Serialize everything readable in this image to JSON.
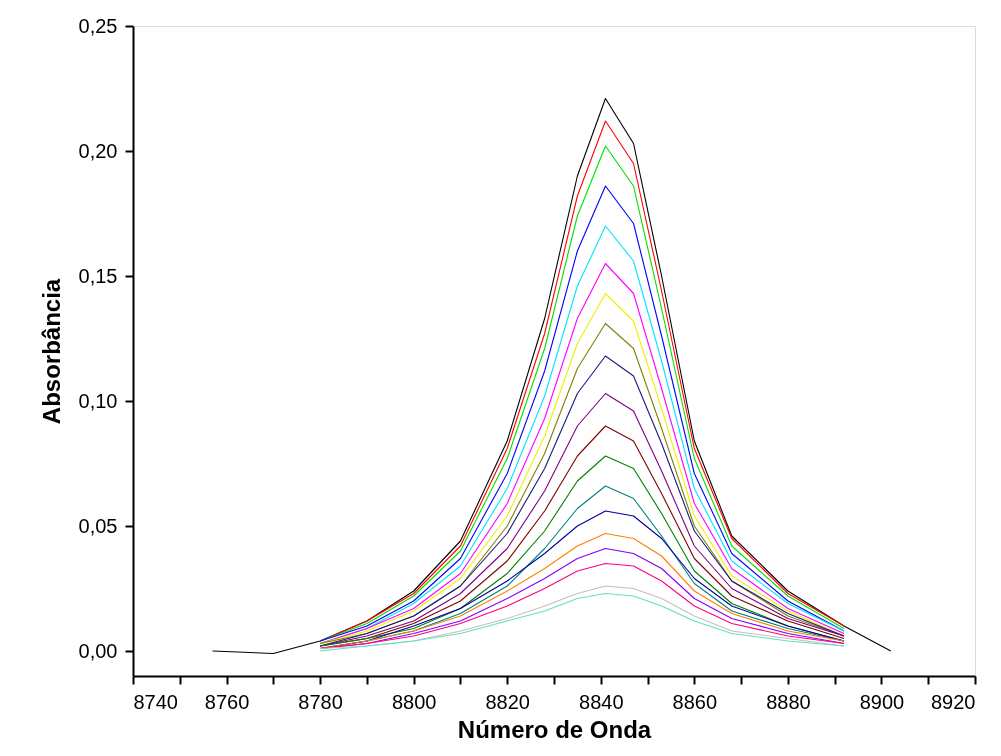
{
  "chart_data": {
    "type": "line",
    "xlabel": "Número de Onda",
    "ylabel": "Absorbância",
    "x": [
      8757,
      8770,
      8780,
      8790,
      8800,
      8810,
      8820,
      8828,
      8835,
      8841,
      8847,
      8853,
      8860,
      8868,
      8880,
      8892,
      8902
    ],
    "xlim": [
      8740,
      8920
    ],
    "xticks": [
      8740,
      {
        "value": 8750,
        "label": null
      },
      8760,
      {
        "value": 8770,
        "label": null
      },
      8780,
      {
        "value": 8790,
        "label": null
      },
      8800,
      {
        "value": 8810,
        "label": null
      },
      8820,
      {
        "value": 8830,
        "label": null
      },
      8840,
      {
        "value": 8850,
        "label": null
      },
      8860,
      {
        "value": 8870,
        "label": null
      },
      8880,
      {
        "value": 8890,
        "label": null
      },
      8900,
      {
        "value": 8910,
        "label": null
      },
      8920
    ],
    "ylim": [
      -0.01,
      0.25
    ],
    "yticks": [
      {
        "value": 0,
        "label": "0,00"
      },
      {
        "value": 0.05,
        "label": "0,05"
      },
      {
        "value": 0.1,
        "label": "0,10"
      },
      {
        "value": 0.15,
        "label": "0,15"
      },
      {
        "value": 0.2,
        "label": "0,20"
      },
      {
        "value": 0.25,
        "label": "0,25"
      }
    ],
    "grid": false,
    "legend": false,
    "marker": "none",
    "line_style": "solid",
    "series": [
      {
        "color": "#000000",
        "values": [
          0,
          -0.001,
          0.004,
          0.012,
          0.024,
          0.044,
          0.084,
          0.133,
          0.19,
          0.221,
          0.203,
          0.15,
          0.084,
          0.046,
          0.024,
          0.01,
          0
        ]
      },
      {
        "color": "#ff0000",
        "values": [
          null,
          null,
          0.004,
          0.012,
          0.023,
          0.042,
          0.081,
          0.127,
          0.182,
          0.212,
          0.195,
          0.144,
          0.081,
          0.045,
          0.023,
          0.01,
          null
        ]
      },
      {
        "color": "#00e000",
        "values": [
          null,
          null,
          0.004,
          0.011,
          0.022,
          0.04,
          0.077,
          0.121,
          0.174,
          0.202,
          0.186,
          0.137,
          0.077,
          0.042,
          0.022,
          0.009,
          null
        ]
      },
      {
        "color": "#0000ff",
        "values": [
          null,
          null,
          0.004,
          0.01,
          0.02,
          0.037,
          0.071,
          0.112,
          0.16,
          0.186,
          0.171,
          0.126,
          0.071,
          0.039,
          0.02,
          0.008,
          null
        ]
      },
      {
        "color": "#00e5ff",
        "values": [
          null,
          null,
          0.003,
          0.009,
          0.019,
          0.034,
          0.065,
          0.102,
          0.146,
          0.17,
          0.156,
          0.116,
          0.065,
          0.036,
          0.019,
          0.008,
          null
        ]
      },
      {
        "color": "#ff00ff",
        "values": [
          null,
          null,
          0.003,
          0.009,
          0.017,
          0.031,
          0.059,
          0.093,
          0.133,
          0.155,
          0.143,
          0.105,
          0.059,
          0.033,
          0.017,
          0.007,
          null
        ]
      },
      {
        "color": "#f0f000",
        "values": [
          null,
          null,
          0.003,
          0.008,
          0.016,
          0.029,
          0.054,
          0.086,
          0.123,
          0.143,
          0.132,
          0.097,
          0.054,
          0.03,
          0.016,
          0.006,
          null
        ]
      },
      {
        "color": "#808000",
        "values": [
          null,
          null,
          0.003,
          0.007,
          0.014,
          0.026,
          0.05,
          0.079,
          0.113,
          0.131,
          0.121,
          0.089,
          0.05,
          0.028,
          0.014,
          0.006,
          null
        ]
      },
      {
        "color": "#1a1a80",
        "values": [
          null,
          null,
          0.002,
          0.007,
          0.014,
          0.026,
          0.047,
          0.073,
          0.103,
          0.118,
          0.11,
          0.083,
          0.048,
          0.028,
          0.015,
          0.006,
          null
        ]
      },
      {
        "color": "#800080",
        "values": [
          null,
          null,
          0.002,
          0.006,
          0.012,
          0.023,
          0.041,
          0.064,
          0.09,
          0.103,
          0.096,
          0.072,
          0.042,
          0.025,
          0.013,
          0.006,
          null
        ]
      },
      {
        "color": "#800000",
        "values": [
          null,
          null,
          0.002,
          0.005,
          0.011,
          0.02,
          0.036,
          0.056,
          0.078,
          0.09,
          0.084,
          0.063,
          0.037,
          0.022,
          0.012,
          0.005,
          null
        ]
      },
      {
        "color": "#008000",
        "values": [
          null,
          null,
          0.002,
          0.005,
          0.009,
          0.017,
          0.031,
          0.048,
          0.068,
          0.078,
          0.073,
          0.055,
          0.032,
          0.019,
          0.01,
          0.004,
          null
        ]
      },
      {
        "color": "#008080",
        "values": [
          null,
          null,
          0.001,
          0.004,
          0.008,
          0.015,
          0.026,
          0.041,
          0.057,
          0.066,
          0.061,
          0.046,
          0.027,
          0.016,
          0.009,
          0.004,
          null
        ]
      },
      {
        "color": "#0000a0",
        "values": [
          null,
          null,
          0.001,
          0.004,
          0.01,
          0.017,
          0.028,
          0.039,
          0.05,
          0.056,
          0.054,
          0.045,
          0.029,
          0.018,
          0.01,
          0.004,
          null
        ]
      },
      {
        "color": "#ff8000",
        "values": [
          null,
          null,
          0.001,
          0.004,
          0.008,
          0.014,
          0.024,
          0.033,
          0.042,
          0.047,
          0.045,
          0.038,
          0.024,
          0.015,
          0.008,
          0.004,
          null
        ]
      },
      {
        "color": "#8000ff",
        "values": [
          null,
          null,
          0.001,
          0.003,
          0.007,
          0.012,
          0.021,
          0.029,
          0.037,
          0.041,
          0.039,
          0.033,
          0.021,
          0.013,
          0.007,
          0.003,
          null
        ]
      },
      {
        "color": "#ff0080",
        "values": [
          null,
          null,
          0.001,
          0.003,
          0.006,
          0.011,
          0.018,
          0.025,
          0.032,
          0.035,
          0.034,
          0.028,
          0.018,
          0.011,
          0.006,
          0.003,
          null
        ]
      },
      {
        "color": "#c0c0c0",
        "values": [
          null,
          null,
          0.001,
          0.002,
          0.004,
          0.008,
          0.013,
          0.018,
          0.023,
          0.026,
          0.025,
          0.021,
          0.014,
          0.008,
          0.005,
          0.002,
          null
        ]
      },
      {
        "color": "#60e0c0",
        "values": [
          null,
          null,
          0,
          0.002,
          0.004,
          0.007,
          0.012,
          0.016,
          0.021,
          0.023,
          0.022,
          0.018,
          0.012,
          0.007,
          0.004,
          0.002,
          null
        ]
      }
    ]
  }
}
